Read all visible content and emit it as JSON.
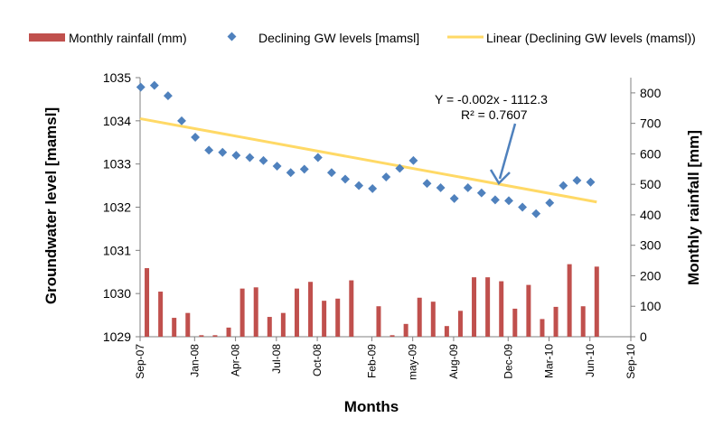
{
  "chart_data": {
    "type": "bar+scatter+line",
    "xlabel": "Months",
    "ylabel_left": "Groundwater level [mamsl]",
    "ylabel_right": "Monthly rainfall [mm]",
    "y_left_range": [
      1029,
      1035
    ],
    "y_left_ticks": [
      "1029",
      "1030",
      "1031",
      "1032",
      "1033",
      "1034",
      "1035"
    ],
    "y_right_range": [
      0,
      850
    ],
    "y_right_ticks": [
      "0",
      "100",
      "200",
      "300",
      "400",
      "500",
      "600",
      "700",
      "800"
    ],
    "x_ticks": [
      {
        "label": "Sep-07",
        "month": 0
      },
      {
        "label": "Jan-08",
        "month": 4
      },
      {
        "label": "Apr-08",
        "month": 7
      },
      {
        "label": "Jul-08",
        "month": 10
      },
      {
        "label": "Oct-08",
        "month": 13
      },
      {
        "label": "Feb-09",
        "month": 17
      },
      {
        "label": "may-09",
        "month": 20
      },
      {
        "label": "Aug-09",
        "month": 23
      },
      {
        "label": "Dec-09",
        "month": 27
      },
      {
        "label": "Mar-10",
        "month": 30
      },
      {
        "label": "Jun-10",
        "month": 33
      },
      {
        "label": "Sep-10",
        "month": 36
      }
    ],
    "legend": {
      "rainfall": "Monthly rainfall (mm)",
      "gw": "Declining GW levels [mamsl]",
      "linear": "Linear (Declining GW levels (mamsl))"
    },
    "colors": {
      "rainfall": "#c0504d",
      "gw": "#4f81bd",
      "linear": "#ffd966",
      "arrow": "#4f81bd"
    },
    "rainfall_mm": [
      225,
      148,
      62,
      78,
      5,
      5,
      30,
      158,
      162,
      65,
      78,
      158,
      180,
      118,
      125,
      185,
      0,
      100,
      5,
      42,
      128,
      115,
      35,
      85,
      195,
      195,
      182,
      92,
      170,
      58,
      98,
      238,
      100,
      230
    ],
    "gw_levels": [
      1034.78,
      1034.82,
      1034.58,
      1034.0,
      1033.62,
      1033.32,
      1033.27,
      1033.2,
      1033.15,
      1033.08,
      1032.95,
      1032.8,
      1032.88,
      1033.15,
      1032.8,
      1032.65,
      1032.5,
      1032.43,
      1032.7,
      1032.9,
      1033.08,
      1032.55,
      1032.45,
      1032.2,
      1032.45,
      1032.33,
      1032.17,
      1032.15,
      1032.0,
      1031.85,
      1032.1,
      1032.5,
      1032.62,
      1032.58
    ],
    "trendline": {
      "start": 1034.05,
      "end": 1032.12
    },
    "equation_line1": "Y = -0.002x - 1112.3",
    "equation_line2": "R² = 0.7607"
  }
}
